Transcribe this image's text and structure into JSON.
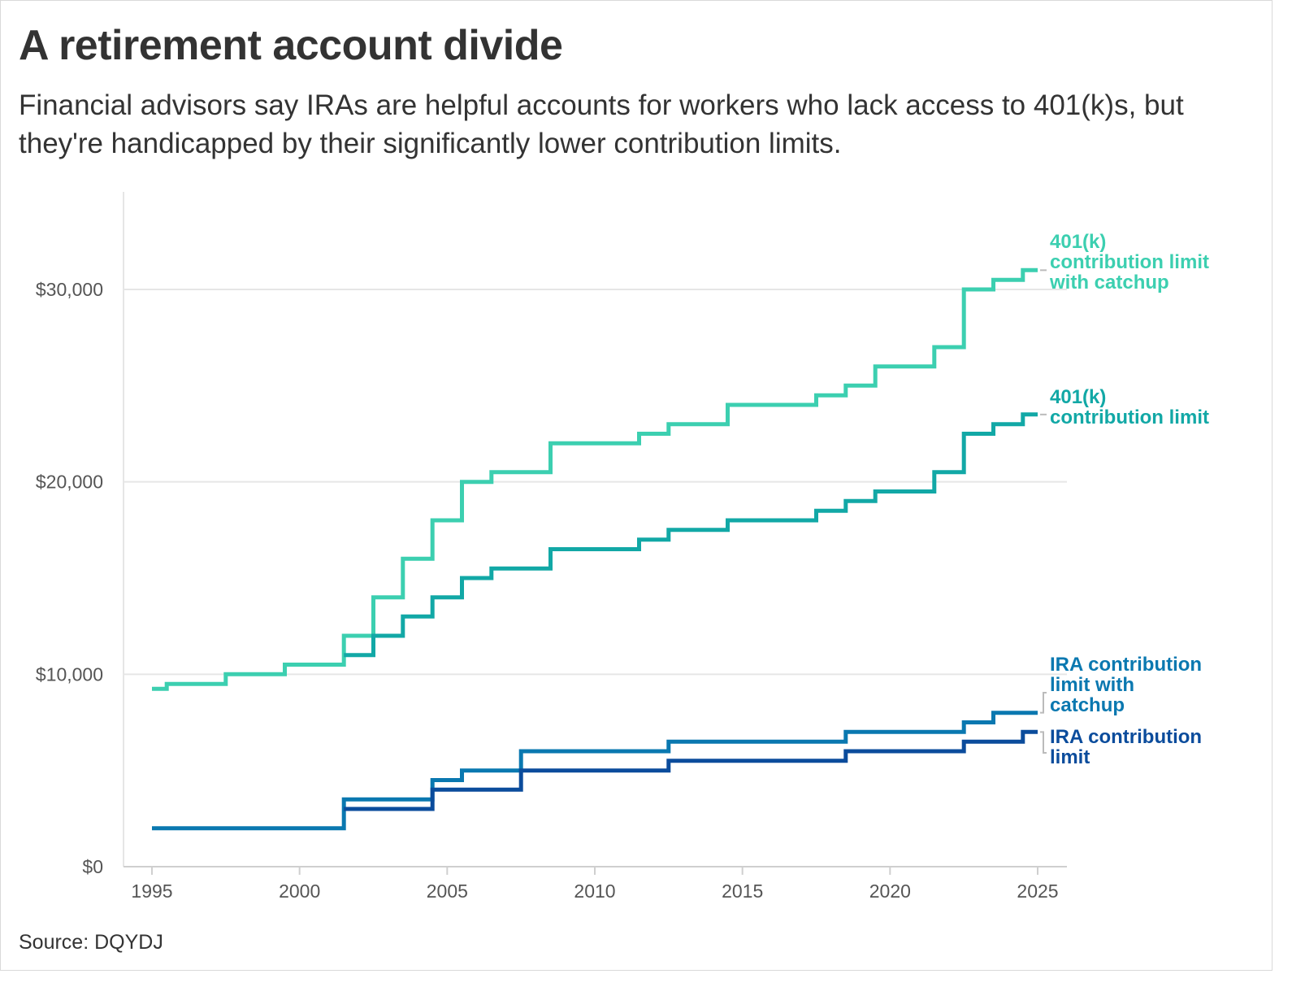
{
  "chart_data": {
    "type": "line",
    "title": "A retirement account divide",
    "subtitle": "Financial advisors say IRAs are helpful accounts for workers who lack access to 401(k)s, but they're handicapped by their significantly lower contribution limits.",
    "source": "Source: DQYDJ",
    "xlabel": "",
    "ylabel": "",
    "x_ticks": [
      "1995",
      "2000",
      "2005",
      "2010",
      "2015",
      "2020",
      "2025"
    ],
    "x_tick_values": [
      1995,
      2000,
      2005,
      2010,
      2015,
      2020,
      2025
    ],
    "y_ticks": [
      "$0",
      "$10,000",
      "$20,000",
      "$30,000"
    ],
    "y_tick_values": [
      0,
      10000,
      20000,
      30000
    ],
    "xlim": [
      1994,
      2026
    ],
    "ylim": [
      0,
      35000
    ],
    "grid": "horizontal",
    "step": "mid",
    "x": [
      1995,
      1996,
      1997,
      1998,
      1999,
      2000,
      2001,
      2002,
      2003,
      2004,
      2005,
      2006,
      2007,
      2008,
      2009,
      2010,
      2011,
      2012,
      2013,
      2014,
      2015,
      2016,
      2017,
      2018,
      2019,
      2020,
      2021,
      2022,
      2023,
      2024,
      2025
    ],
    "series": [
      {
        "key": "k401_catchup",
        "name": "401(k) contribution limit with catchup",
        "label_lines": [
          "401(k)",
          "contribution limit",
          "with catchup"
        ],
        "color": "#3ccfb0",
        "values": [
          9240,
          9500,
          9500,
          10000,
          10000,
          10500,
          10500,
          12000,
          14000,
          16000,
          18000,
          20000,
          20500,
          20500,
          22000,
          22000,
          22000,
          22500,
          23000,
          23000,
          24000,
          24000,
          24000,
          24500,
          25000,
          26000,
          26000,
          27000,
          30000,
          30500,
          31000
        ]
      },
      {
        "key": "k401",
        "name": "401(k) contribution limit",
        "label_lines": [
          "401(k)",
          "contribution limit"
        ],
        "color": "#12a8a6",
        "values": [
          null,
          null,
          null,
          null,
          null,
          null,
          null,
          11000,
          12000,
          13000,
          14000,
          15000,
          15500,
          15500,
          16500,
          16500,
          16500,
          17000,
          17500,
          17500,
          18000,
          18000,
          18000,
          18500,
          19000,
          19500,
          19500,
          20500,
          22500,
          23000,
          23500
        ]
      },
      {
        "key": "ira_catchup",
        "name": "IRA contribution limit with catchup",
        "label_lines": [
          "IRA contribution",
          "limit with",
          "catchup"
        ],
        "color": "#0a78b0",
        "values": [
          2000,
          2000,
          2000,
          2000,
          2000,
          2000,
          2000,
          3500,
          3500,
          3500,
          4500,
          5000,
          5000,
          6000,
          6000,
          6000,
          6000,
          6000,
          6500,
          6500,
          6500,
          6500,
          6500,
          6500,
          7000,
          7000,
          7000,
          7000,
          7500,
          8000,
          8000
        ]
      },
      {
        "key": "ira",
        "name": "IRA contribution limit",
        "label_lines": [
          "IRA contribution",
          "limit"
        ],
        "color": "#0b4c9c",
        "values": [
          null,
          null,
          null,
          null,
          null,
          null,
          null,
          3000,
          3000,
          3000,
          4000,
          4000,
          4000,
          5000,
          5000,
          5000,
          5000,
          5000,
          5500,
          5500,
          5500,
          5500,
          5500,
          5500,
          6000,
          6000,
          6000,
          6000,
          6500,
          6500,
          7000
        ]
      }
    ]
  }
}
